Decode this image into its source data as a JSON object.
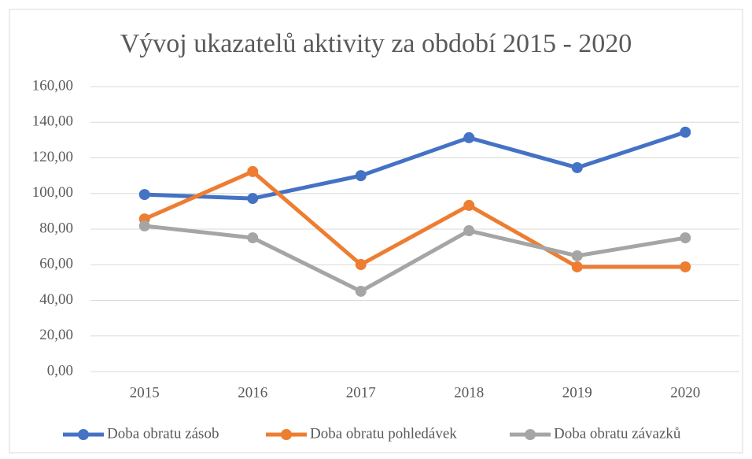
{
  "chart_data": {
    "type": "line",
    "title": "Vývoj ukazatelů aktivity za období 2015 - 2020",
    "categories": [
      "2015",
      "2016",
      "2017",
      "2018",
      "2019",
      "2020"
    ],
    "series": [
      {
        "name": "Doba obratu zásob",
        "color": "#4472c4",
        "values": [
          99.4,
          97.2,
          110.0,
          131.3,
          114.5,
          134.4
        ]
      },
      {
        "name": "Doba obratu pohledávek",
        "color": "#ed7d31",
        "values": [
          85.7,
          112.3,
          60.1,
          93.3,
          58.8,
          58.8
        ]
      },
      {
        "name": "Doba obratu závazků",
        "color": "#a5a5a5",
        "values": [
          81.8,
          75.1,
          45.1,
          79.1,
          65.0,
          75.1
        ]
      }
    ],
    "ylim": [
      0,
      160
    ],
    "yticks": [
      {
        "value": 0,
        "label": "0,00"
      },
      {
        "value": 20,
        "label": "20,00"
      },
      {
        "value": 40,
        "label": "40,00"
      },
      {
        "value": 60,
        "label": "60,00"
      },
      {
        "value": 80,
        "label": "80,00"
      },
      {
        "value": 100,
        "label": "100,00"
      },
      {
        "value": 120,
        "label": "120,00"
      },
      {
        "value": 140,
        "label": "140,00"
      },
      {
        "value": 160,
        "label": "160,00"
      }
    ],
    "grid": true,
    "legend": "bottom"
  }
}
